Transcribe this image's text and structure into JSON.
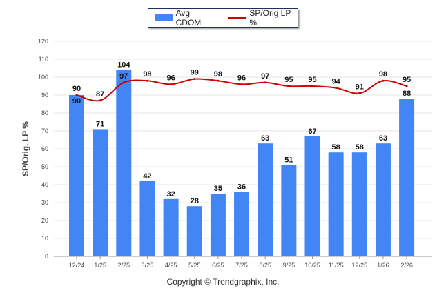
{
  "chart_data": {
    "type": "bar",
    "categories": [
      "12/24",
      "1/25",
      "2/25",
      "3/25",
      "4/25",
      "5/25",
      "6/25",
      "7/25",
      "8/25",
      "9/25",
      "10/25",
      "11/25",
      "12/25",
      "1/26",
      "2/26"
    ],
    "series": [
      {
        "name": "Avg CDOM",
        "type": "bar",
        "color": "#4285f4",
        "values": [
          90,
          71,
          104,
          42,
          32,
          28,
          35,
          36,
          63,
          51,
          67,
          58,
          58,
          63,
          88
        ]
      },
      {
        "name": "SP/Orig LP %",
        "type": "line",
        "color": "#cc0000",
        "values": [
          90,
          87,
          97,
          98,
          96,
          99,
          98,
          96,
          97,
          95,
          95,
          94,
          91,
          98,
          95
        ]
      }
    ],
    "ylabel": "SP/Orig. LP %",
    "ylim": [
      0,
      120
    ],
    "yticks": [
      0,
      10,
      20,
      30,
      40,
      50,
      60,
      70,
      80,
      90,
      100,
      110,
      120
    ],
    "grid": true,
    "legend_position": "top-center"
  },
  "legend": {
    "bar_label": "Avg CDOM",
    "line_label": "SP/Orig LP %"
  },
  "footer": "Copyright © Trendgraphix, Inc."
}
